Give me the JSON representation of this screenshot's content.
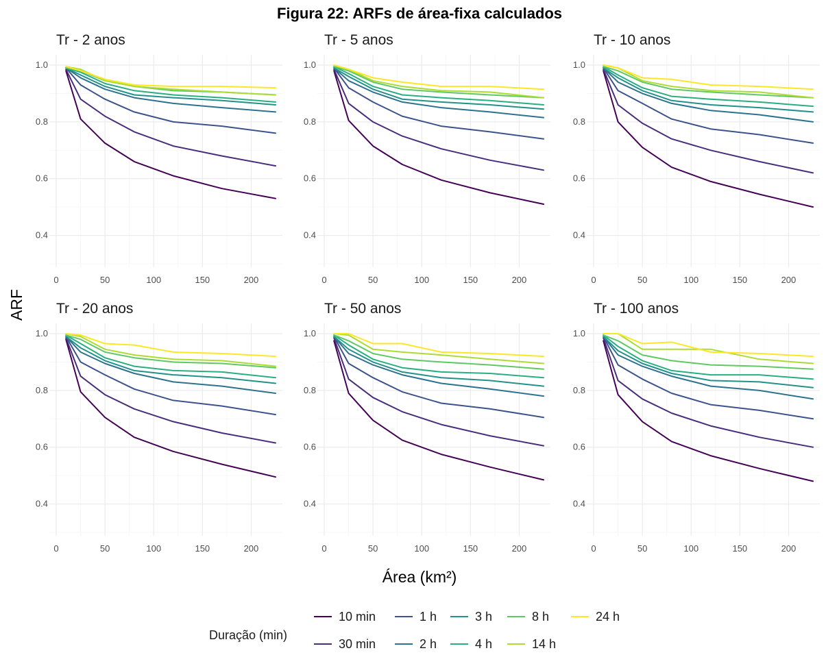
{
  "chart_data": {
    "type": "line",
    "title": "Figura 22: ARFs de área-fixa calculados",
    "xlabel": "Área (km²)",
    "ylabel": "ARF",
    "xlim": [
      0,
      225
    ],
    "ylim": [
      0.3,
      1.0
    ],
    "x_ticks": [
      "0",
      "50",
      "100",
      "150",
      "200"
    ],
    "y_ticks": [
      "0.4",
      "0.6",
      "0.8",
      "1.0"
    ],
    "grid": true,
    "legend": {
      "title": "Duração (min)",
      "position": "bottom",
      "entries": [
        {
          "label": "10 min",
          "color": "#440154"
        },
        {
          "label": "30 min",
          "color": "#472d7b"
        },
        {
          "label": "1 h",
          "color": "#3b528b"
        },
        {
          "label": "2 h",
          "color": "#2c728e"
        },
        {
          "label": "3 h",
          "color": "#21918c"
        },
        {
          "label": "4 h",
          "color": "#28ae80"
        },
        {
          "label": "8 h",
          "color": "#5ec962"
        },
        {
          "label": "14 h",
          "color": "#addc30"
        },
        {
          "label": "24 h",
          "color": "#fde725"
        }
      ]
    },
    "x": [
      10,
      25,
      50,
      80,
      120,
      170,
      225
    ],
    "panels": [
      {
        "title": "Tr - 2 anos",
        "series": [
          {
            "name": "10 min",
            "values": [
              0.98,
              0.81,
              0.725,
              0.66,
              0.61,
              0.565,
              0.53
            ]
          },
          {
            "name": "30 min",
            "values": [
              0.985,
              0.88,
              0.82,
              0.765,
              0.715,
              0.68,
              0.645
            ]
          },
          {
            "name": "1 h",
            "values": [
              0.99,
              0.93,
              0.88,
              0.835,
              0.8,
              0.785,
              0.76
            ]
          },
          {
            "name": "2 h",
            "values": [
              0.99,
              0.955,
              0.915,
              0.885,
              0.865,
              0.85,
              0.835
            ]
          },
          {
            "name": "3 h",
            "values": [
              0.99,
              0.965,
              0.925,
              0.895,
              0.885,
              0.875,
              0.86
            ]
          },
          {
            "name": "4 h",
            "values": [
              0.99,
              0.975,
              0.935,
              0.91,
              0.895,
              0.885,
              0.87
            ]
          },
          {
            "name": "8 h",
            "values": [
              0.99,
              0.98,
              0.945,
              0.925,
              0.91,
              0.905,
              0.895
            ]
          },
          {
            "name": "14 h",
            "values": [
              0.995,
              0.985,
              0.945,
              0.925,
              0.915,
              0.905,
              0.895
            ]
          },
          {
            "name": "24 h",
            "values": [
              0.995,
              0.98,
              0.95,
              0.93,
              0.925,
              0.925,
              0.92
            ]
          }
        ]
      },
      {
        "title": "Tr - 5 anos",
        "series": [
          {
            "name": "10 min",
            "values": [
              0.98,
              0.805,
              0.715,
              0.65,
              0.595,
              0.55,
              0.51
            ]
          },
          {
            "name": "30 min",
            "values": [
              0.985,
              0.865,
              0.8,
              0.75,
              0.705,
              0.665,
              0.63
            ]
          },
          {
            "name": "1 h",
            "values": [
              0.99,
              0.92,
              0.87,
              0.82,
              0.785,
              0.765,
              0.74
            ]
          },
          {
            "name": "2 h",
            "values": [
              0.99,
              0.945,
              0.905,
              0.87,
              0.85,
              0.835,
              0.815
            ]
          },
          {
            "name": "3 h",
            "values": [
              0.99,
              0.96,
              0.915,
              0.88,
              0.87,
              0.86,
              0.845
            ]
          },
          {
            "name": "4 h",
            "values": [
              0.995,
              0.97,
              0.925,
              0.895,
              0.885,
              0.875,
              0.86
            ]
          },
          {
            "name": "8 h",
            "values": [
              0.995,
              0.98,
              0.94,
              0.915,
              0.905,
              0.895,
              0.885
            ]
          },
          {
            "name": "14 h",
            "values": [
              1.0,
              0.985,
              0.945,
              0.925,
              0.91,
              0.905,
              0.885
            ]
          },
          {
            "name": "24 h",
            "values": [
              1.0,
              0.985,
              0.955,
              0.94,
              0.925,
              0.925,
              0.915
            ]
          }
        ]
      },
      {
        "title": "Tr - 10 anos",
        "series": [
          {
            "name": "10 min",
            "values": [
              0.98,
              0.8,
              0.71,
              0.64,
              0.59,
              0.545,
              0.5
            ]
          },
          {
            "name": "30 min",
            "values": [
              0.985,
              0.86,
              0.795,
              0.74,
              0.7,
              0.66,
              0.62
            ]
          },
          {
            "name": "1 h",
            "values": [
              0.99,
              0.91,
              0.865,
              0.81,
              0.775,
              0.755,
              0.725
            ]
          },
          {
            "name": "2 h",
            "values": [
              0.99,
              0.94,
              0.9,
              0.865,
              0.84,
              0.825,
              0.8
            ]
          },
          {
            "name": "3 h",
            "values": [
              0.99,
              0.955,
              0.91,
              0.875,
              0.86,
              0.85,
              0.835
            ]
          },
          {
            "name": "4 h",
            "values": [
              0.995,
              0.965,
              0.92,
              0.89,
              0.88,
              0.87,
              0.855
            ]
          },
          {
            "name": "8 h",
            "values": [
              0.995,
              0.98,
              0.94,
              0.915,
              0.905,
              0.895,
              0.885
            ]
          },
          {
            "name": "14 h",
            "values": [
              1.0,
              0.99,
              0.945,
              0.925,
              0.91,
              0.905,
              0.885
            ]
          },
          {
            "name": "24 h",
            "values": [
              1.0,
              0.99,
              0.955,
              0.95,
              0.93,
              0.925,
              0.915
            ]
          }
        ]
      },
      {
        "title": "Tr - 20 anos",
        "series": [
          {
            "name": "10 min",
            "values": [
              0.98,
              0.795,
              0.705,
              0.635,
              0.585,
              0.54,
              0.495
            ]
          },
          {
            "name": "30 min",
            "values": [
              0.985,
              0.85,
              0.785,
              0.735,
              0.69,
              0.65,
              0.615
            ]
          },
          {
            "name": "1 h",
            "values": [
              0.99,
              0.9,
              0.855,
              0.805,
              0.765,
              0.745,
              0.715
            ]
          },
          {
            "name": "2 h",
            "values": [
              0.99,
              0.935,
              0.895,
              0.86,
              0.83,
              0.815,
              0.79
            ]
          },
          {
            "name": "3 h",
            "values": [
              0.99,
              0.95,
              0.905,
              0.87,
              0.855,
              0.845,
              0.825
            ]
          },
          {
            "name": "4 h",
            "values": [
              0.995,
              0.965,
              0.915,
              0.885,
              0.87,
              0.865,
              0.845
            ]
          },
          {
            "name": "8 h",
            "values": [
              0.995,
              0.98,
              0.935,
              0.915,
              0.9,
              0.895,
              0.88
            ]
          },
          {
            "name": "14 h",
            "values": [
              1.0,
              0.99,
              0.945,
              0.925,
              0.91,
              0.905,
              0.885
            ]
          },
          {
            "name": "24 h",
            "values": [
              1.0,
              0.995,
              0.965,
              0.96,
              0.935,
              0.93,
              0.92
            ]
          }
        ]
      },
      {
        "title": "Tr - 50 anos",
        "series": [
          {
            "name": "10 min",
            "values": [
              0.975,
              0.79,
              0.695,
              0.625,
              0.575,
              0.53,
              0.485
            ]
          },
          {
            "name": "30 min",
            "values": [
              0.985,
              0.84,
              0.775,
              0.725,
              0.68,
              0.64,
              0.605
            ]
          },
          {
            "name": "1 h",
            "values": [
              0.99,
              0.895,
              0.845,
              0.795,
              0.755,
              0.735,
              0.705
            ]
          },
          {
            "name": "2 h",
            "values": [
              0.99,
              0.93,
              0.89,
              0.855,
              0.825,
              0.805,
              0.78
            ]
          },
          {
            "name": "3 h",
            "values": [
              0.99,
              0.945,
              0.9,
              0.865,
              0.845,
              0.835,
              0.815
            ]
          },
          {
            "name": "4 h",
            "values": [
              0.995,
              0.96,
              0.91,
              0.88,
              0.865,
              0.86,
              0.845
            ]
          },
          {
            "name": "8 h",
            "values": [
              0.995,
              0.975,
              0.93,
              0.91,
              0.9,
              0.89,
              0.875
            ]
          },
          {
            "name": "14 h",
            "values": [
              1.0,
              0.995,
              0.945,
              0.935,
              0.925,
              0.91,
              0.895
            ]
          },
          {
            "name": "24 h",
            "values": [
              1.0,
              1.0,
              0.965,
              0.965,
              0.935,
              0.93,
              0.92
            ]
          }
        ]
      },
      {
        "title": "Tr - 100 anos",
        "series": [
          {
            "name": "10 min",
            "values": [
              0.975,
              0.785,
              0.69,
              0.62,
              0.57,
              0.525,
              0.48
            ]
          },
          {
            "name": "30 min",
            "values": [
              0.985,
              0.835,
              0.77,
              0.72,
              0.675,
              0.635,
              0.6
            ]
          },
          {
            "name": "1 h",
            "values": [
              0.99,
              0.89,
              0.84,
              0.79,
              0.75,
              0.73,
              0.7
            ]
          },
          {
            "name": "2 h",
            "values": [
              0.99,
              0.925,
              0.885,
              0.85,
              0.815,
              0.8,
              0.77
            ]
          },
          {
            "name": "3 h",
            "values": [
              0.99,
              0.94,
              0.895,
              0.86,
              0.835,
              0.83,
              0.81
            ]
          },
          {
            "name": "4 h",
            "values": [
              0.995,
              0.955,
              0.905,
              0.87,
              0.855,
              0.855,
              0.84
            ]
          },
          {
            "name": "8 h",
            "values": [
              0.995,
              0.975,
              0.925,
              0.905,
              0.89,
              0.885,
              0.875
            ]
          },
          {
            "name": "14 h",
            "values": [
              1.0,
              1.0,
              0.945,
              0.945,
              0.945,
              0.91,
              0.895
            ]
          },
          {
            "name": "24 h",
            "values": [
              1.0,
              1.0,
              0.965,
              0.97,
              0.935,
              0.93,
              0.92
            ]
          }
        ]
      }
    ]
  }
}
